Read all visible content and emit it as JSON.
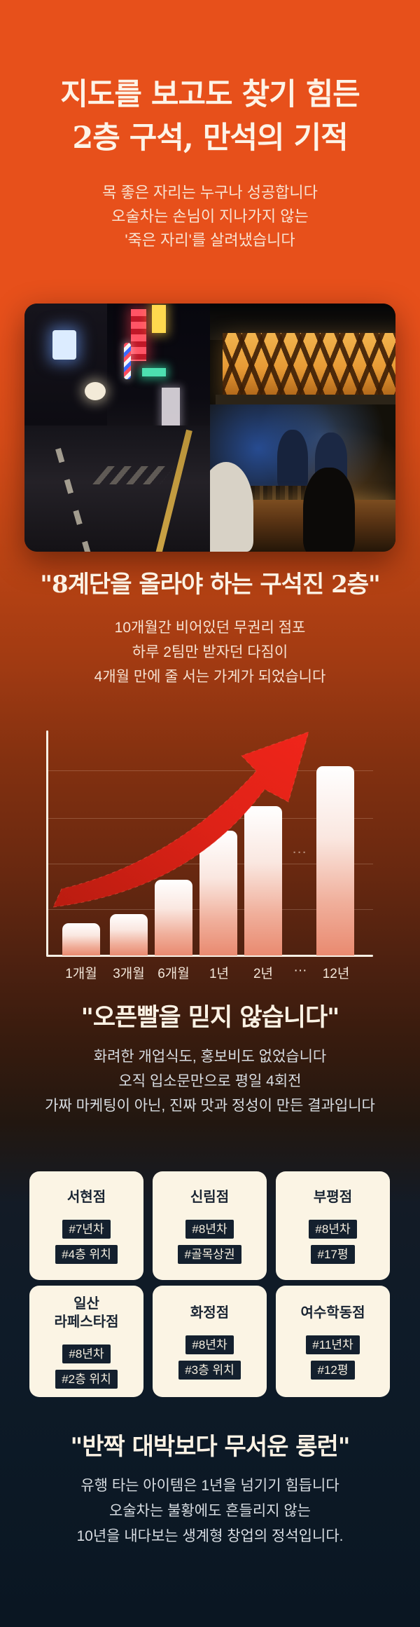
{
  "hero": {
    "title_line1": "지도를 보고도 찾기 힘든",
    "title_line2": "2층 구석, 만석의 기적",
    "subtitle_lines": [
      "목 좋은 자리는 누구나 성공합니다",
      "오술차는 손님이 지나가지 않는",
      "'죽은 자리'를 살려냈습니다"
    ]
  },
  "photos": {
    "left_photo": "empty-night-alley-before",
    "right_photo": "crowded-pocha-bar-after"
  },
  "section_stairs": {
    "quote": "\"8계단을 올라야 하는 구석진 2층\"",
    "body_lines": [
      "10개월간 비어있던 무권리 점포",
      "하루 2팀만 받자던 다짐이",
      "4개월 만에 줄 서는 가게가 되었습니다"
    ]
  },
  "chart_data": {
    "type": "bar",
    "title": "",
    "xlabel": "",
    "ylabel": "",
    "categories": [
      "1개월",
      "3개월",
      "6개월",
      "1년",
      "2년",
      "12년"
    ],
    "values": [
      17,
      22,
      40,
      66,
      79,
      100
    ],
    "axis_tick_labels": [
      "1개월",
      "3개월",
      "6개월",
      "1년",
      "2년",
      "···",
      "12년"
    ],
    "ellipsis_note": "···",
    "ylim": [
      0,
      110
    ],
    "grid": true,
    "legend": false,
    "annotations": [
      "upward red growth arrow"
    ]
  },
  "section_openbuzz": {
    "quote": "\"오픈빨을 믿지 않습니다\"",
    "body_lines": [
      "화려한 개업식도, 홍보비도 없었습니다",
      "오직 입소문만으로 평일 4회전",
      "가짜 마케팅이 아닌, 진짜 맛과 정성이 만든 결과입니다"
    ]
  },
  "stores": [
    {
      "name": "서현점",
      "tags": [
        "#7년차",
        "#4층 위치"
      ]
    },
    {
      "name": "신림점",
      "tags": [
        "#8년차",
        "#골목상권"
      ]
    },
    {
      "name": "부평점",
      "tags": [
        "#8년차",
        "#17평"
      ]
    },
    {
      "name": "일산\n라페스타점",
      "tags": [
        "#8년차",
        "#2층 위치"
      ]
    },
    {
      "name": "화정점",
      "tags": [
        "#8년차",
        "#3층 위치"
      ]
    },
    {
      "name": "여수학동점",
      "tags": [
        "#11년차",
        "#12평"
      ]
    }
  ],
  "section_longrun": {
    "quote": "\"반짝 대박보다 무서운 롱런\"",
    "body_lines": [
      "유행 타는 아이템은 1년을 넘기기 힘듭니다",
      "오술차는 불황에도 흔들리지 않는",
      "10년을 내다보는 생계형 창업의 정석입니다."
    ]
  },
  "colors": {
    "accent_orange": "#E7501B",
    "arrow_red": "#E3231A",
    "bar_top": "#FFFFFF",
    "bar_bottom": "#E98A70",
    "card_cream": "#FBF4E4",
    "tag_navy": "#14202E",
    "bg_bottom_navy": "#0A1622",
    "heading_cream": "#FBF2E4"
  }
}
